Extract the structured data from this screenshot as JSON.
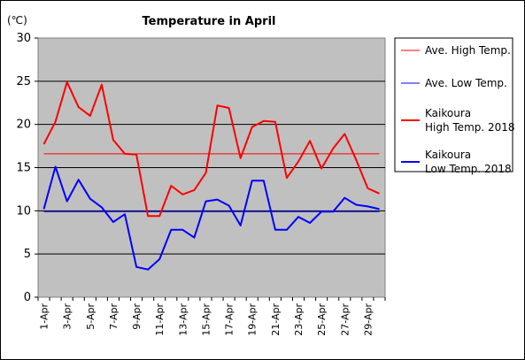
{
  "chart_data": {
    "type": "line",
    "title": "Temperature in April",
    "unit_label": "(℃)",
    "ylim": [
      0,
      30
    ],
    "yticks": [
      "0",
      "5",
      "10",
      "15",
      "20",
      "25",
      "30"
    ],
    "xticks": [
      "1-Apr",
      "3-Apr",
      "5-Apr",
      "7-Apr",
      "9-Apr",
      "11-Apr",
      "13-Apr",
      "15-Apr",
      "17-Apr",
      "19-Apr",
      "21-Apr",
      "23-Apr",
      "25-Apr",
      "27-Apr",
      "29-Apr"
    ],
    "x": [
      "1-Apr",
      "2-Apr",
      "3-Apr",
      "4-Apr",
      "5-Apr",
      "6-Apr",
      "7-Apr",
      "8-Apr",
      "9-Apr",
      "10-Apr",
      "11-Apr",
      "12-Apr",
      "13-Apr",
      "14-Apr",
      "15-Apr",
      "16-Apr",
      "17-Apr",
      "18-Apr",
      "19-Apr",
      "20-Apr",
      "21-Apr",
      "22-Apr",
      "23-Apr",
      "24-Apr",
      "25-Apr",
      "26-Apr",
      "27-Apr",
      "28-Apr",
      "29-Apr",
      "30-Apr"
    ],
    "grid": true,
    "legend_position": "right",
    "series": [
      {
        "name": "Ave. High Temp.",
        "color": "#ff0000",
        "width": 1,
        "constant": 16.6
      },
      {
        "name": "Ave. Low Temp.",
        "color": "#0000ff",
        "width": 1,
        "constant": 9.9
      },
      {
        "name": "Kaikoura High Temp. 2018",
        "legend_lines": [
          "Kaikoura",
          "High Temp. 2018"
        ],
        "color": "#ff0000",
        "width": 2,
        "values": [
          17.7,
          20.3,
          24.9,
          22.0,
          21.0,
          24.6,
          18.2,
          16.6,
          16.5,
          9.4,
          9.4,
          12.9,
          11.9,
          12.4,
          14.4,
          22.2,
          21.9,
          16.1,
          19.7,
          20.4,
          20.3,
          13.8,
          15.7,
          18.1,
          14.9,
          17.2,
          18.9,
          15.9,
          12.6,
          12.0
        ]
      },
      {
        "name": "Kaikoura Low Temp. 2018",
        "legend_lines": [
          "Kaikoura",
          "Low Temp. 2018"
        ],
        "color": "#0000ff",
        "width": 2,
        "values": [
          10.2,
          15.1,
          11.1,
          13.6,
          11.4,
          10.4,
          8.7,
          9.6,
          3.5,
          3.2,
          4.4,
          7.8,
          7.8,
          6.9,
          11.1,
          11.3,
          10.6,
          8.3,
          13.5,
          13.5,
          7.8,
          7.8,
          9.3,
          8.6,
          9.9,
          9.9,
          11.5,
          10.7,
          10.5,
          10.2
        ]
      }
    ]
  }
}
